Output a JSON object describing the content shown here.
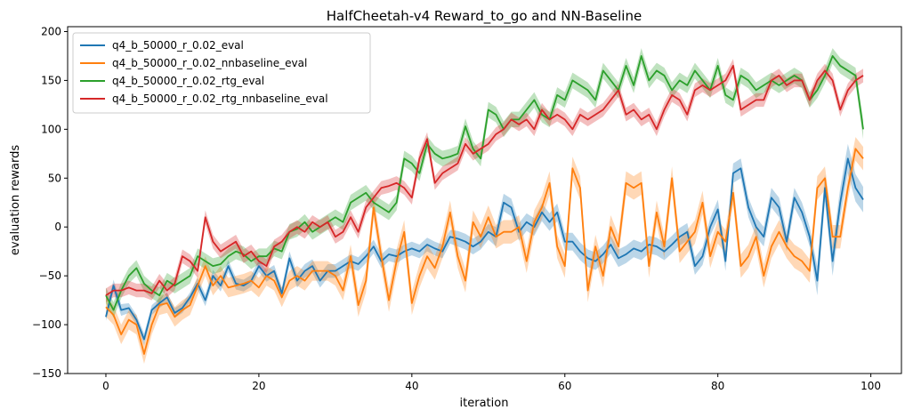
{
  "chart_data": {
    "type": "line",
    "title": "HalfCheetah-v4 Reward_to_go and NN-Baseline",
    "xlabel": "iteration",
    "ylabel": "evaluation rewards",
    "xlim": [
      -5,
      104
    ],
    "ylim": [
      -150,
      205
    ],
    "xticks": [
      0,
      20,
      40,
      60,
      80,
      100
    ],
    "yticks": [
      -150,
      -100,
      -50,
      0,
      50,
      100,
      150,
      200
    ],
    "grid": false,
    "legend_position": "top-left",
    "series": [
      {
        "name": "q4_b_50000_r_0.02_eval",
        "color": "#1f77b4",
        "values": [
          -92,
          -60,
          -85,
          -83,
          -95,
          -115,
          -85,
          -78,
          -72,
          -88,
          -83,
          -72,
          -58,
          -75,
          -50,
          -60,
          -40,
          -58,
          -60,
          -55,
          -40,
          -50,
          -45,
          -68,
          -32,
          -55,
          -45,
          -40,
          -55,
          -45,
          -45,
          -40,
          -35,
          -38,
          -30,
          -20,
          -35,
          -28,
          -30,
          -25,
          -22,
          -25,
          -18,
          -22,
          -25,
          -10,
          -12,
          -15,
          -20,
          -15,
          -5,
          -10,
          25,
          20,
          -5,
          5,
          0,
          15,
          5,
          15,
          -15,
          -15,
          -25,
          -32,
          -35,
          -28,
          -18,
          -32,
          -28,
          -22,
          -25,
          -18,
          -20,
          -25,
          -18,
          -10,
          -5,
          -40,
          -30,
          0,
          18,
          -35,
          55,
          60,
          20,
          0,
          -10,
          30,
          20,
          -15,
          30,
          15,
          -10,
          -55,
          40,
          -35,
          25,
          70,
          40,
          28
        ],
        "band": [
          4,
          6,
          6,
          5,
          5,
          6,
          5,
          5,
          5,
          5,
          5,
          5,
          6,
          6,
          6,
          6,
          6,
          6,
          6,
          6,
          6,
          6,
          6,
          6,
          7,
          7,
          7,
          7,
          7,
          7,
          7,
          7,
          7,
          7,
          7,
          7,
          7,
          7,
          7,
          7,
          7,
          7,
          7,
          7,
          7,
          7,
          8,
          8,
          8,
          8,
          8,
          10,
          9,
          9,
          9,
          9,
          9,
          9,
          9,
          9,
          9,
          9,
          9,
          9,
          9,
          9,
          9,
          9,
          9,
          9,
          9,
          9,
          9,
          9,
          9,
          9,
          9,
          9,
          9,
          9,
          10,
          10,
          10,
          10,
          10,
          10,
          10,
          10,
          10,
          10,
          10,
          10,
          10,
          15,
          14,
          15,
          15,
          15,
          14,
          13
        ]
      },
      {
        "name": "q4_b_50000_r_0.02_nnbaseline_eval",
        "color": "#ff7f0e",
        "values": [
          -82,
          -90,
          -110,
          -95,
          -100,
          -130,
          -100,
          -80,
          -78,
          -92,
          -85,
          -80,
          -60,
          -40,
          -60,
          -50,
          -62,
          -60,
          -58,
          -55,
          -62,
          -50,
          -55,
          -72,
          -55,
          -50,
          -55,
          -45,
          -45,
          -45,
          -50,
          -65,
          -30,
          -80,
          -55,
          20,
          -30,
          -75,
          -35,
          -5,
          -78,
          -50,
          -30,
          -42,
          -20,
          15,
          -30,
          -55,
          5,
          -10,
          10,
          -10,
          -5,
          -5,
          0,
          -35,
          5,
          20,
          45,
          -20,
          -40,
          60,
          40,
          -65,
          -20,
          -50,
          0,
          -20,
          45,
          40,
          45,
          -40,
          15,
          -20,
          50,
          -25,
          -15,
          -5,
          25,
          -30,
          -5,
          -15,
          35,
          -40,
          -30,
          -10,
          -50,
          -20,
          -5,
          -20,
          -30,
          -35,
          -45,
          40,
          50,
          -10,
          -10,
          40,
          80,
          70
        ],
        "band": [
          10,
          10,
          10,
          10,
          10,
          10,
          10,
          10,
          10,
          10,
          10,
          10,
          10,
          10,
          10,
          10,
          10,
          10,
          10,
          10,
          10,
          10,
          10,
          10,
          10,
          10,
          10,
          10,
          10,
          10,
          10,
          10,
          12,
          12,
          12,
          12,
          12,
          12,
          12,
          12,
          12,
          12,
          12,
          12,
          12,
          12,
          12,
          12,
          12,
          12,
          12,
          12,
          12,
          12,
          12,
          12,
          12,
          12,
          12,
          12,
          12,
          12,
          12,
          12,
          12,
          12,
          12,
          12,
          12,
          12,
          12,
          12,
          12,
          12,
          12,
          12,
          12,
          12,
          12,
          12,
          12,
          12,
          12,
          12,
          12,
          12,
          12,
          12,
          12,
          12,
          12,
          12,
          12,
          12,
          12,
          12,
          12,
          12,
          12,
          12
        ]
      },
      {
        "name": "q4_b_50000_r_0.02_rtg_eval",
        "color": "#2ca02c",
        "values": [
          -70,
          -85,
          -65,
          -50,
          -42,
          -58,
          -65,
          -70,
          -55,
          -60,
          -55,
          -50,
          -30,
          -35,
          -40,
          -38,
          -30,
          -25,
          -28,
          -35,
          -30,
          -30,
          -22,
          -25,
          -5,
          -2,
          5,
          -5,
          0,
          5,
          10,
          5,
          25,
          30,
          35,
          25,
          20,
          15,
          25,
          70,
          65,
          55,
          85,
          75,
          70,
          72,
          75,
          103,
          80,
          70,
          120,
          115,
          100,
          110,
          110,
          120,
          130,
          115,
          110,
          135,
          130,
          150,
          145,
          140,
          130,
          160,
          150,
          140,
          165,
          145,
          175,
          150,
          160,
          155,
          140,
          150,
          145,
          160,
          150,
          140,
          165,
          135,
          130,
          155,
          150,
          140,
          145,
          150,
          145,
          150,
          155,
          150,
          130,
          140,
          155,
          175,
          165,
          160,
          155,
          100
        ],
        "band": [
          8,
          8,
          8,
          8,
          8,
          8,
          8,
          8,
          8,
          8,
          8,
          8,
          8,
          8,
          8,
          8,
          8,
          8,
          8,
          8,
          8,
          8,
          8,
          8,
          8,
          8,
          8,
          8,
          8,
          8,
          8,
          8,
          8,
          8,
          8,
          8,
          8,
          8,
          8,
          8,
          8,
          8,
          8,
          8,
          8,
          8,
          8,
          8,
          8,
          8,
          8,
          8,
          8,
          8,
          8,
          8,
          8,
          8,
          8,
          8,
          8,
          8,
          8,
          8,
          8,
          8,
          8,
          8,
          8,
          8,
          8,
          8,
          8,
          8,
          8,
          8,
          8,
          8,
          8,
          8,
          8,
          8,
          8,
          8,
          8,
          8,
          8,
          8,
          8,
          8,
          8,
          8,
          8,
          8,
          8,
          8,
          8,
          8,
          8,
          10
        ]
      },
      {
        "name": "q4_b_50000_r_0.02_rtg_nnbaseline_eval",
        "color": "#d62728",
        "values": [
          -70,
          -65,
          -65,
          -62,
          -65,
          -65,
          -68,
          -55,
          -65,
          -58,
          -30,
          -35,
          -45,
          10,
          -15,
          -25,
          -20,
          -15,
          -30,
          -25,
          -35,
          -40,
          -20,
          -15,
          -5,
          0,
          -5,
          5,
          0,
          5,
          -10,
          -5,
          10,
          -5,
          20,
          30,
          40,
          42,
          45,
          40,
          30,
          70,
          90,
          45,
          55,
          60,
          65,
          85,
          75,
          80,
          85,
          95,
          100,
          110,
          105,
          110,
          100,
          120,
          110,
          115,
          110,
          100,
          115,
          110,
          115,
          120,
          130,
          140,
          115,
          120,
          110,
          115,
          100,
          120,
          135,
          130,
          115,
          140,
          145,
          140,
          145,
          150,
          165,
          120,
          125,
          130,
          130,
          150,
          155,
          145,
          150,
          150,
          130,
          150,
          160,
          150,
          120,
          140,
          150,
          155
        ],
        "band": [
          7,
          7,
          7,
          7,
          7,
          7,
          7,
          7,
          7,
          7,
          7,
          7,
          7,
          7,
          7,
          7,
          7,
          7,
          7,
          7,
          7,
          7,
          7,
          7,
          7,
          7,
          7,
          7,
          7,
          7,
          7,
          7,
          7,
          7,
          7,
          7,
          7,
          7,
          7,
          7,
          7,
          7,
          7,
          7,
          7,
          7,
          7,
          7,
          7,
          7,
          7,
          7,
          7,
          7,
          7,
          7,
          7,
          7,
          7,
          7,
          7,
          7,
          7,
          7,
          7,
          7,
          7,
          7,
          7,
          7,
          7,
          7,
          7,
          7,
          7,
          7,
          7,
          7,
          7,
          7,
          7,
          7,
          7,
          7,
          7,
          7,
          7,
          7,
          7,
          7,
          7,
          7,
          7,
          7,
          7,
          7,
          7,
          7,
          7,
          7
        ]
      }
    ]
  }
}
